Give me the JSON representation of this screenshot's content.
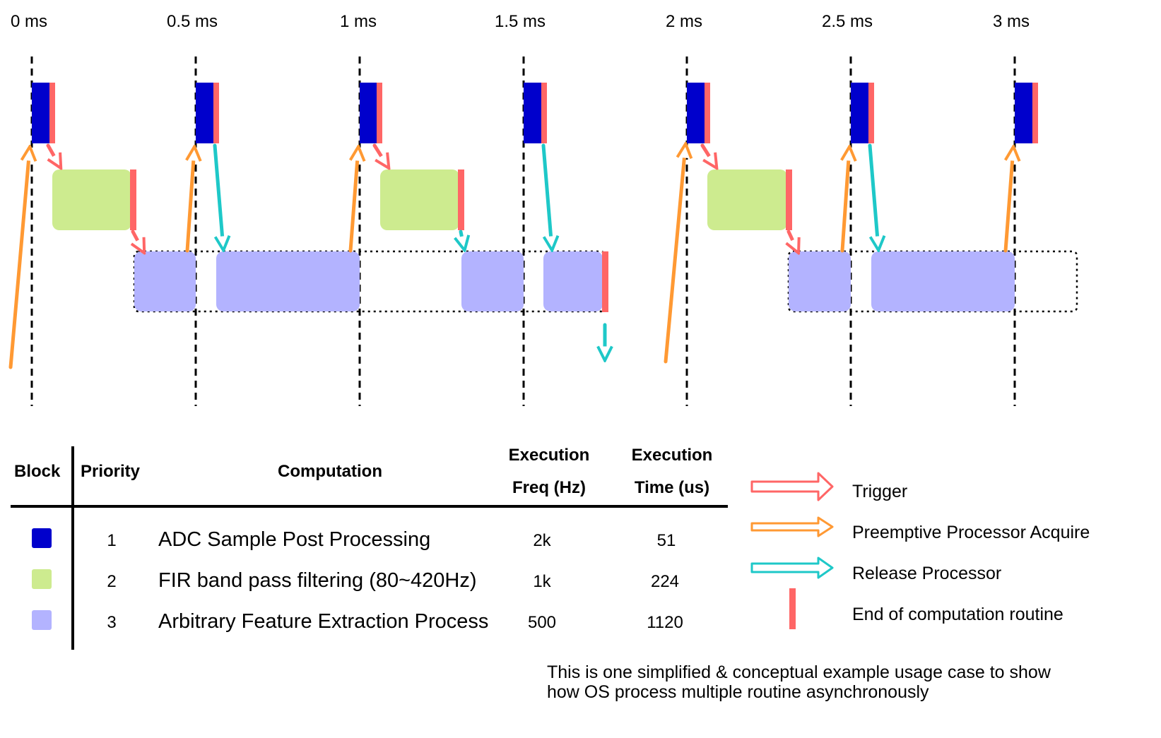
{
  "timeline": {
    "ticks": [
      {
        "label": "0 ms",
        "t": 0
      },
      {
        "label": "0.5 ms",
        "t": 0.5
      },
      {
        "label": "1 ms",
        "t": 1
      },
      {
        "label": "1.5 ms",
        "t": 1.5
      },
      {
        "label": "2 ms",
        "t": 2
      },
      {
        "label": "2.5 ms",
        "t": 2.5
      },
      {
        "label": "3 ms",
        "t": 3
      }
    ],
    "colors": {
      "adc": "#0000cc",
      "fir": "#cdeb8f",
      "fe": "#b3b3ff",
      "end": "#ff6666",
      "trigger": "#ff6666",
      "acquire": "#ff9933",
      "release": "#1ec8c8"
    }
  },
  "table": {
    "headers": {
      "block": "Block",
      "priority": "Priority",
      "computation": "Computation",
      "freq_line1": "Execution",
      "freq_line2": "Freq (Hz)",
      "time_line1": "Execution",
      "time_line2": "Time (us)"
    },
    "rows": [
      {
        "color": "#0000cc",
        "priority": "1",
        "computation": "ADC Sample Post Processing",
        "freq": "2k",
        "time": "51"
      },
      {
        "color": "#cdeb8f",
        "priority": "2",
        "computation": "FIR band pass filtering (80~420Hz)",
        "freq": "1k",
        "time": "224"
      },
      {
        "color": "#b3b3ff",
        "priority": "3",
        "computation": "Arbitrary Feature Extraction Process",
        "freq": "500",
        "time": "1120"
      }
    ]
  },
  "legend": [
    {
      "label": "Trigger",
      "icon": "trigger-arrow-icon",
      "color": "#ff6666"
    },
    {
      "label": "Preemptive Processor Acquire",
      "icon": "acquire-arrow-icon",
      "color": "#ff9933"
    },
    {
      "label": "Release Processor",
      "icon": "release-arrow-icon",
      "color": "#1ec8c8"
    },
    {
      "label": "End of computation routine",
      "icon": "end-marker-icon",
      "color": "#ff6666"
    }
  ],
  "note": {
    "line1": "This is one simplified & conceptual example usage case to show",
    "line2": "how OS process multiple routine asynchronously"
  }
}
